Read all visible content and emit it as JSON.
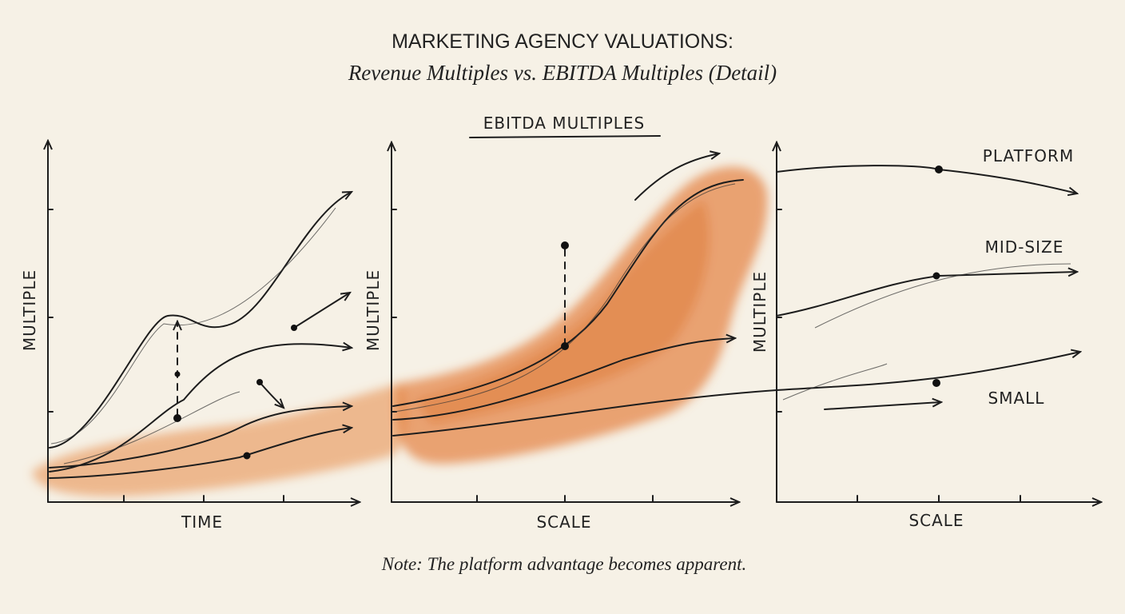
{
  "header": {
    "title": "MARKETING AGENCY VALUATIONS:",
    "subtitle": "Revenue Multiples vs. EBITDA Multiples (Detail)"
  },
  "panels": [
    {
      "y_label": "MULTIPLE",
      "x_label": "TIME"
    },
    {
      "heading": "EBITDA MULTIPLES",
      "y_label": "MULTIPLE",
      "x_label": "SCALE"
    },
    {
      "y_label": "MULTIPLE",
      "x_label": "SCALE",
      "series_labels": [
        "PLATFORM",
        "MID-SIZE",
        "SMALL"
      ]
    }
  ],
  "note": "Note: The platform advantage becomes apparent."
}
